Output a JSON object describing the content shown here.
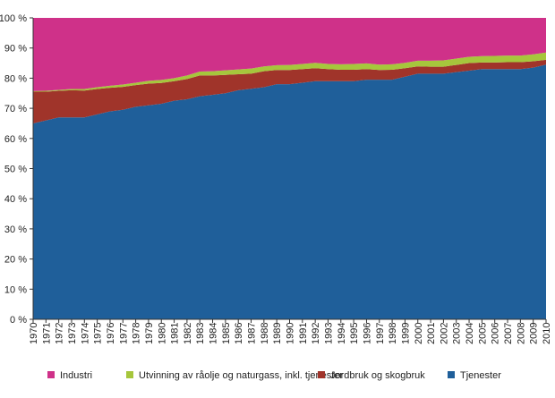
{
  "chart_data": {
    "type": "area",
    "stacked": true,
    "percent": true,
    "x": [
      1970,
      1971,
      1972,
      1973,
      1974,
      1975,
      1976,
      1977,
      1978,
      1979,
      1980,
      1981,
      1982,
      1983,
      1984,
      1985,
      1986,
      1987,
      1988,
      1989,
      1990,
      1991,
      1992,
      1993,
      1994,
      1995,
      1996,
      1997,
      1998,
      1999,
      2000,
      2001,
      2002,
      2003,
      2004,
      2005,
      2006,
      2007,
      2008,
      2009,
      2010
    ],
    "ylim": [
      0,
      100
    ],
    "yticks": [
      "0 %",
      "10 %",
      "20 %",
      "30 %",
      "40 %",
      "50 %",
      "60 %",
      "70 %",
      "80 %",
      "90 %",
      "100 %"
    ],
    "grid": false,
    "legend_position": "bottom",
    "series": [
      {
        "name": "Tjenester",
        "color": "#1f5f9a",
        "values": [
          65,
          66,
          67,
          67,
          67,
          68,
          69,
          69.5,
          70.5,
          71,
          71.5,
          72.5,
          73,
          74,
          74.5,
          75,
          76,
          76.5,
          77,
          78,
          78,
          78.5,
          79,
          79,
          79,
          79,
          79.5,
          79.5,
          79.5,
          80.5,
          81.5,
          81.5,
          81.5,
          82,
          82.5,
          83,
          83,
          83,
          83,
          83.5,
          84.5
        ]
      },
      {
        "name": "Jordbruk og skogbruk",
        "color": "#a0342a",
        "values": [
          10.5,
          9.5,
          8.8,
          9,
          8.9,
          8.4,
          7.8,
          7.6,
          7.2,
          7.2,
          6.9,
          6.5,
          6.7,
          6.9,
          6.4,
          6.1,
          5.3,
          5,
          5.3,
          4.7,
          4.7,
          4.5,
          4.3,
          4,
          3.8,
          3.8,
          3.5,
          3.2,
          3.3,
          2.8,
          2.4,
          2.3,
          2.3,
          2.4,
          2.5,
          2.2,
          2.2,
          2.3,
          2.3,
          2.1,
          1.6
        ]
      },
      {
        "name": "Utvinning av råolje og naturgass, inkl. tjenester",
        "color": "#a6c63c",
        "values": [
          0.2,
          0.3,
          0.3,
          0.4,
          0.5,
          0.6,
          0.7,
          0.8,
          0.8,
          0.9,
          1,
          1,
          1.2,
          1.3,
          1.4,
          1.5,
          1.6,
          1.7,
          1.6,
          1.6,
          1.7,
          1.7,
          1.8,
          1.7,
          1.8,
          1.9,
          1.9,
          1.8,
          1.8,
          1.8,
          1.9,
          2,
          2.1,
          2.1,
          2.1,
          2.1,
          2.2,
          2.2,
          2.2,
          2.3,
          2.4
        ]
      },
      {
        "name": "Industri",
        "color": "#cf3189",
        "values": [
          24.3,
          24.2,
          23.9,
          23.6,
          23.6,
          23,
          22.5,
          22.1,
          21.5,
          20.9,
          20.6,
          20,
          19.1,
          17.8,
          17.7,
          17.4,
          17.1,
          16.8,
          16.1,
          15.7,
          15.6,
          15.3,
          14.9,
          15.3,
          15.4,
          15.3,
          15.1,
          15.5,
          15.4,
          14.9,
          14.2,
          14.2,
          14.1,
          13.5,
          12.9,
          12.7,
          12.6,
          12.5,
          12.5,
          12.1,
          11.5
        ]
      }
    ],
    "legend_order": [
      "Industri",
      "Utvinning av råolje og naturgass, inkl. tjenester",
      "Jordbruk og skogbruk",
      "Tjenester"
    ]
  }
}
